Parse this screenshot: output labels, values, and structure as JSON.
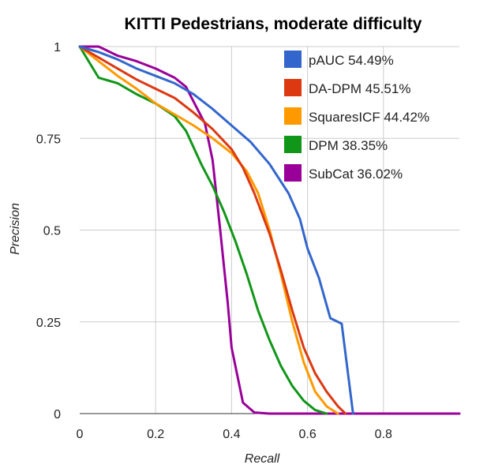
{
  "chart_data": {
    "type": "line",
    "title": "KITTI Pedestrians, moderate difficulty",
    "xlabel": "Recall",
    "ylabel": "Precision",
    "xlim": [
      0,
      1
    ],
    "ylim": [
      0,
      1
    ],
    "x_ticks": [
      0,
      0.2,
      0.4,
      0.6,
      0.8
    ],
    "x_tick_labels": [
      "0",
      "0.2",
      "0.4",
      "0.6",
      "0.8"
    ],
    "y_ticks": [
      0,
      0.25,
      0.5,
      0.75,
      1
    ],
    "y_tick_labels": [
      "0",
      "0.25",
      "0.5",
      "0.75",
      "1"
    ],
    "grid": true,
    "legend_position": "top-right",
    "series": [
      {
        "name": "pAUC 54.49%",
        "color": "#3366cc",
        "points": [
          [
            0,
            1
          ],
          [
            0.05,
            0.985
          ],
          [
            0.1,
            0.965
          ],
          [
            0.15,
            0.94
          ],
          [
            0.2,
            0.92
          ],
          [
            0.25,
            0.9
          ],
          [
            0.3,
            0.87
          ],
          [
            0.35,
            0.83
          ],
          [
            0.4,
            0.785
          ],
          [
            0.45,
            0.74
          ],
          [
            0.5,
            0.68
          ],
          [
            0.55,
            0.6
          ],
          [
            0.58,
            0.53
          ],
          [
            0.6,
            0.45
          ],
          [
            0.63,
            0.37
          ],
          [
            0.66,
            0.26
          ],
          [
            0.69,
            0.245
          ],
          [
            0.72,
            0
          ]
        ]
      },
      {
        "name": "DA-DPM 45.51%",
        "color": "#dc3912",
        "points": [
          [
            0,
            1
          ],
          [
            0.05,
            0.97
          ],
          [
            0.1,
            0.94
          ],
          [
            0.15,
            0.91
          ],
          [
            0.2,
            0.885
          ],
          [
            0.25,
            0.86
          ],
          [
            0.3,
            0.82
          ],
          [
            0.35,
            0.775
          ],
          [
            0.4,
            0.72
          ],
          [
            0.43,
            0.67
          ],
          [
            0.46,
            0.6
          ],
          [
            0.5,
            0.49
          ],
          [
            0.53,
            0.39
          ],
          [
            0.56,
            0.28
          ],
          [
            0.59,
            0.18
          ],
          [
            0.62,
            0.11
          ],
          [
            0.65,
            0.06
          ],
          [
            0.68,
            0.02
          ],
          [
            0.7,
            0
          ]
        ]
      },
      {
        "name": "SquaresICF 44.42%",
        "color": "#ff9900",
        "points": [
          [
            0,
            1
          ],
          [
            0.05,
            0.96
          ],
          [
            0.1,
            0.92
          ],
          [
            0.15,
            0.885
          ],
          [
            0.2,
            0.845
          ],
          [
            0.25,
            0.815
          ],
          [
            0.3,
            0.785
          ],
          [
            0.35,
            0.75
          ],
          [
            0.4,
            0.71
          ],
          [
            0.44,
            0.66
          ],
          [
            0.47,
            0.6
          ],
          [
            0.5,
            0.5
          ],
          [
            0.53,
            0.38
          ],
          [
            0.56,
            0.25
          ],
          [
            0.59,
            0.14
          ],
          [
            0.62,
            0.06
          ],
          [
            0.65,
            0.02
          ],
          [
            0.68,
            0
          ]
        ]
      },
      {
        "name": "DPM 38.35%",
        "color": "#109618",
        "points": [
          [
            0,
            1
          ],
          [
            0.05,
            0.915
          ],
          [
            0.1,
            0.9
          ],
          [
            0.15,
            0.87
          ],
          [
            0.2,
            0.845
          ],
          [
            0.25,
            0.81
          ],
          [
            0.28,
            0.77
          ],
          [
            0.32,
            0.68
          ],
          [
            0.35,
            0.62
          ],
          [
            0.38,
            0.55
          ],
          [
            0.41,
            0.47
          ],
          [
            0.44,
            0.38
          ],
          [
            0.47,
            0.28
          ],
          [
            0.5,
            0.2
          ],
          [
            0.53,
            0.13
          ],
          [
            0.56,
            0.075
          ],
          [
            0.59,
            0.035
          ],
          [
            0.62,
            0.01
          ],
          [
            0.65,
            0
          ]
        ]
      },
      {
        "name": "SubCat 36.02%",
        "color": "#990099",
        "points": [
          [
            0,
            1
          ],
          [
            0.05,
            1
          ],
          [
            0.1,
            0.975
          ],
          [
            0.15,
            0.96
          ],
          [
            0.2,
            0.94
          ],
          [
            0.25,
            0.915
          ],
          [
            0.28,
            0.89
          ],
          [
            0.3,
            0.85
          ],
          [
            0.33,
            0.79
          ],
          [
            0.35,
            0.69
          ],
          [
            0.37,
            0.5
          ],
          [
            0.39,
            0.3
          ],
          [
            0.4,
            0.18
          ],
          [
            0.43,
            0.03
          ],
          [
            0.46,
            0.003
          ],
          [
            0.5,
            0
          ],
          [
            1,
            0
          ]
        ]
      }
    ]
  }
}
